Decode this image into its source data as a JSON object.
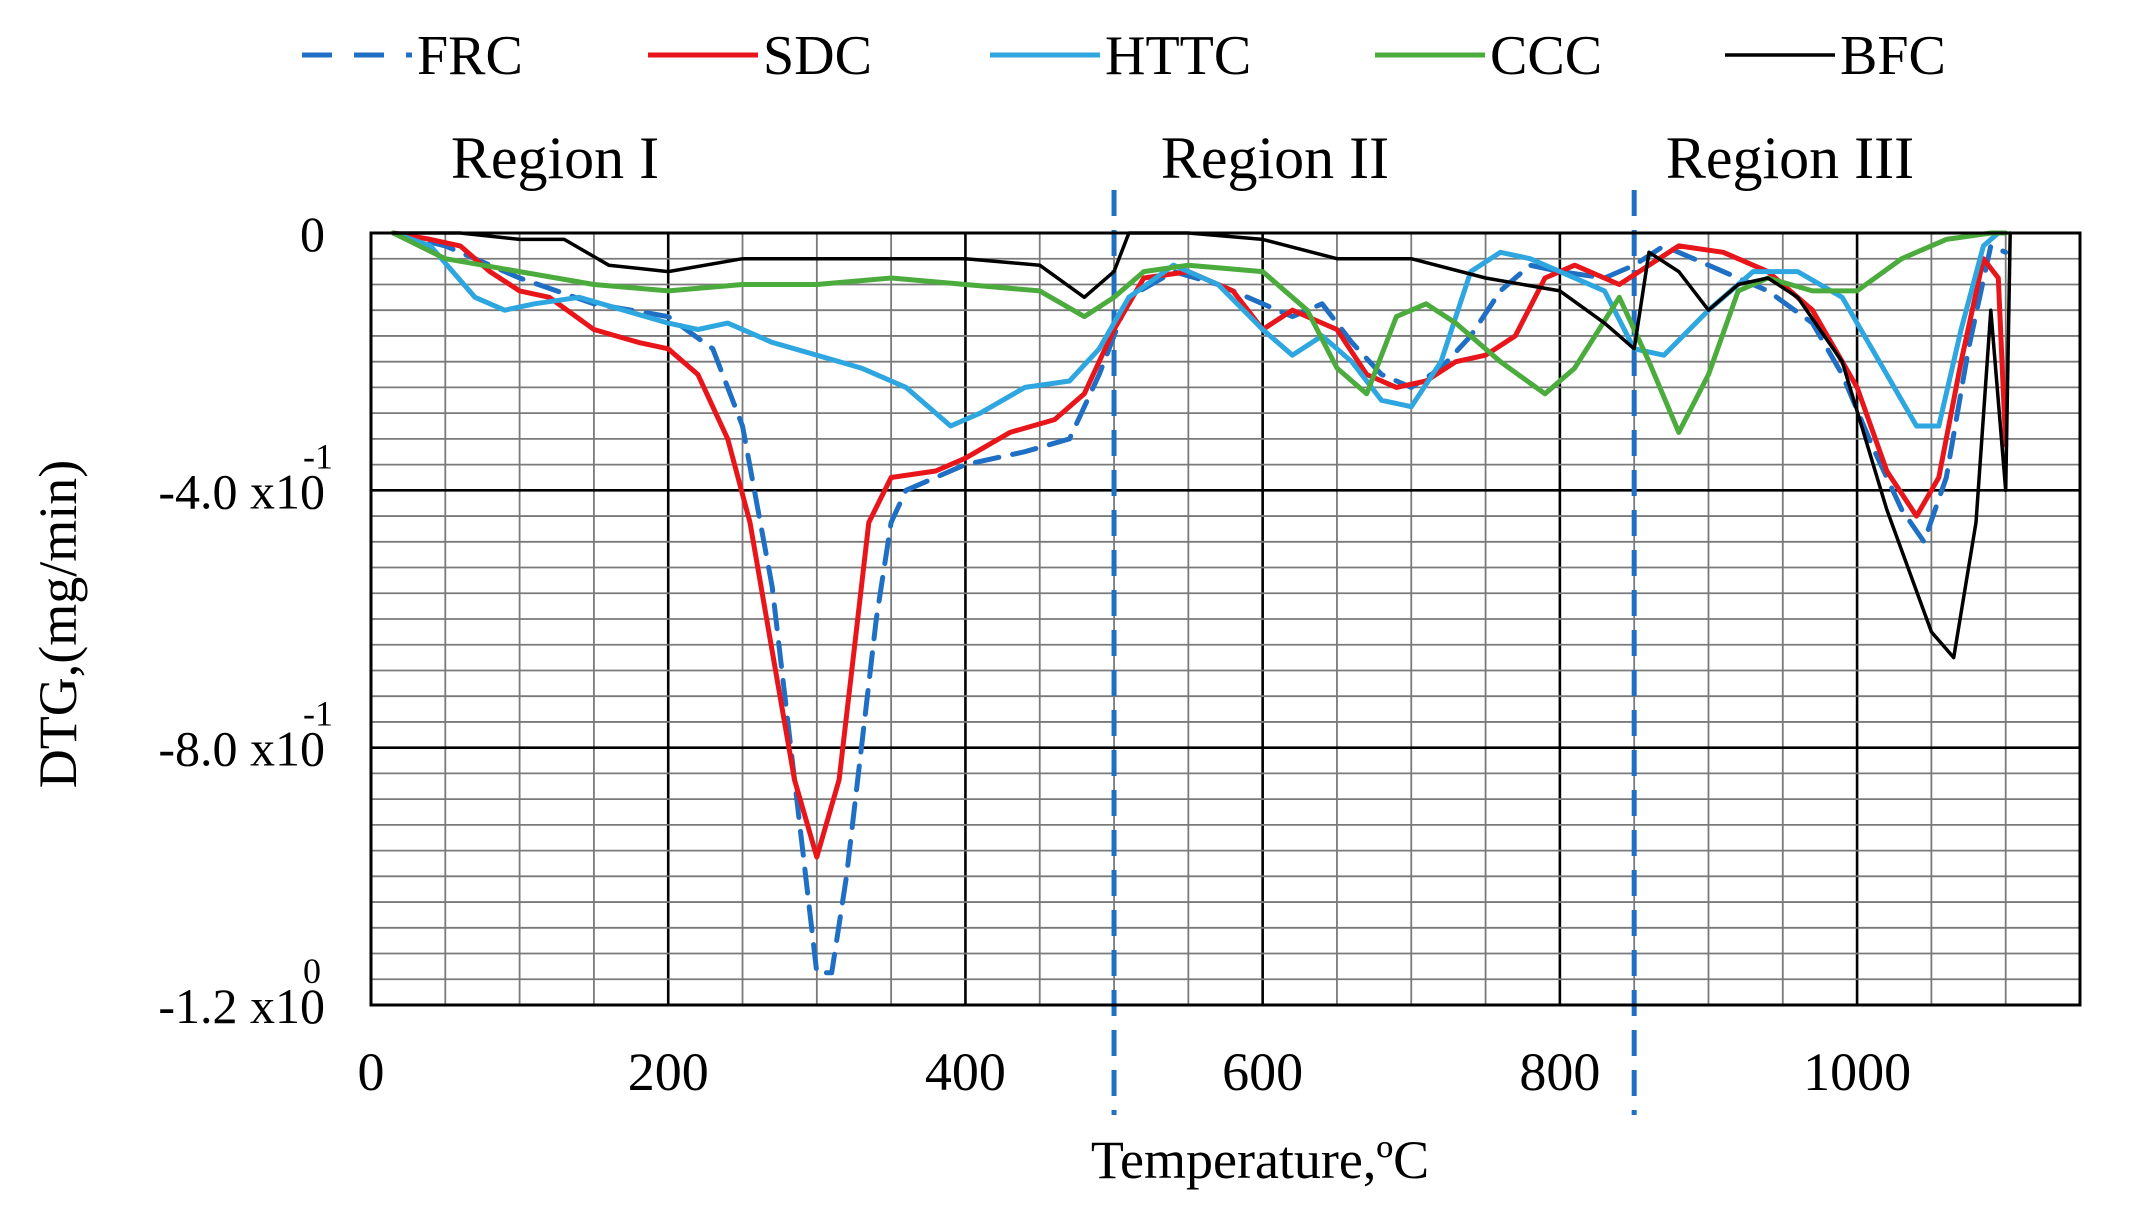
{
  "chart_data": {
    "type": "line",
    "xlabel": "Temperature,ºC",
    "ylabel": "DTG,(mg/min)",
    "xlim": [
      0,
      1150
    ],
    "ylim": [
      -1.2,
      0
    ],
    "x_major_step": 200,
    "x_minor_step": 50,
    "y_major_step": 0.4,
    "y_minor_step": 0.04,
    "x_ticks": [
      {
        "value": 0,
        "label": "0"
      },
      {
        "value": 200,
        "label": "200"
      },
      {
        "value": 400,
        "label": "400"
      },
      {
        "value": 600,
        "label": "600"
      },
      {
        "value": 800,
        "label": "800"
      },
      {
        "value": 1000,
        "label": "1000"
      }
    ],
    "y_ticks": [
      {
        "value": 0,
        "label": "0",
        "exp": ""
      },
      {
        "value": -0.4,
        "label": "-4.0 x10",
        "exp": "-1"
      },
      {
        "value": -0.8,
        "label": "-8.0 x10",
        "exp": "-1"
      },
      {
        "value": -1.2,
        "label": "-1.2 x10",
        "exp": "0"
      }
    ],
    "regions": [
      {
        "label": "Region I",
        "x_start": 0,
        "x_end": 500
      },
      {
        "label": "Region II",
        "x_start": 500,
        "x_end": 850
      },
      {
        "label": "Region III",
        "x_start": 850,
        "x_end": 1100
      }
    ],
    "region_boundaries": [
      500,
      850
    ],
    "series": [
      {
        "name": "FRC",
        "color": "#1f6fc5",
        "dashed": true,
        "points": [
          [
            15,
            0
          ],
          [
            50,
            -0.02
          ],
          [
            100,
            -0.07
          ],
          [
            150,
            -0.11
          ],
          [
            200,
            -0.13
          ],
          [
            230,
            -0.18
          ],
          [
            250,
            -0.3
          ],
          [
            270,
            -0.55
          ],
          [
            290,
            -0.95
          ],
          [
            300,
            -1.15
          ],
          [
            310,
            -1.15
          ],
          [
            320,
            -1.0
          ],
          [
            330,
            -0.8
          ],
          [
            340,
            -0.6
          ],
          [
            350,
            -0.45
          ],
          [
            360,
            -0.4
          ],
          [
            400,
            -0.36
          ],
          [
            440,
            -0.34
          ],
          [
            470,
            -0.32
          ],
          [
            490,
            -0.22
          ],
          [
            510,
            -0.1
          ],
          [
            540,
            -0.06
          ],
          [
            570,
            -0.08
          ],
          [
            600,
            -0.11
          ],
          [
            620,
            -0.13
          ],
          [
            640,
            -0.11
          ],
          [
            660,
            -0.17
          ],
          [
            680,
            -0.22
          ],
          [
            700,
            -0.24
          ],
          [
            720,
            -0.21
          ],
          [
            740,
            -0.16
          ],
          [
            760,
            -0.09
          ],
          [
            780,
            -0.05
          ],
          [
            800,
            -0.06
          ],
          [
            830,
            -0.07
          ],
          [
            850,
            -0.05
          ],
          [
            870,
            -0.02
          ],
          [
            900,
            -0.05
          ],
          [
            940,
            -0.09
          ],
          [
            970,
            -0.14
          ],
          [
            990,
            -0.22
          ],
          [
            1010,
            -0.33
          ],
          [
            1030,
            -0.43
          ],
          [
            1045,
            -0.48
          ],
          [
            1060,
            -0.38
          ],
          [
            1075,
            -0.18
          ],
          [
            1090,
            -0.02
          ],
          [
            1100,
            -0.03
          ]
        ]
      },
      {
        "name": "SDC",
        "color": "#e8161b",
        "dashed": false,
        "points": [
          [
            15,
            0
          ],
          [
            40,
            -0.01
          ],
          [
            60,
            -0.02
          ],
          [
            80,
            -0.06
          ],
          [
            100,
            -0.09
          ],
          [
            120,
            -0.1
          ],
          [
            150,
            -0.15
          ],
          [
            180,
            -0.17
          ],
          [
            200,
            -0.18
          ],
          [
            220,
            -0.22
          ],
          [
            240,
            -0.32
          ],
          [
            255,
            -0.45
          ],
          [
            270,
            -0.65
          ],
          [
            285,
            -0.85
          ],
          [
            300,
            -0.97
          ],
          [
            315,
            -0.85
          ],
          [
            325,
            -0.65
          ],
          [
            335,
            -0.45
          ],
          [
            350,
            -0.38
          ],
          [
            380,
            -0.37
          ],
          [
            400,
            -0.35
          ],
          [
            430,
            -0.31
          ],
          [
            460,
            -0.29
          ],
          [
            480,
            -0.25
          ],
          [
            500,
            -0.15
          ],
          [
            520,
            -0.07
          ],
          [
            550,
            -0.06
          ],
          [
            580,
            -0.09
          ],
          [
            600,
            -0.15
          ],
          [
            620,
            -0.12
          ],
          [
            650,
            -0.15
          ],
          [
            670,
            -0.22
          ],
          [
            690,
            -0.24
          ],
          [
            710,
            -0.23
          ],
          [
            730,
            -0.2
          ],
          [
            750,
            -0.19
          ],
          [
            770,
            -0.16
          ],
          [
            790,
            -0.07
          ],
          [
            810,
            -0.05
          ],
          [
            840,
            -0.08
          ],
          [
            860,
            -0.05
          ],
          [
            880,
            -0.02
          ],
          [
            910,
            -0.03
          ],
          [
            940,
            -0.06
          ],
          [
            970,
            -0.12
          ],
          [
            1000,
            -0.24
          ],
          [
            1020,
            -0.37
          ],
          [
            1040,
            -0.44
          ],
          [
            1055,
            -0.38
          ],
          [
            1070,
            -0.2
          ],
          [
            1085,
            -0.04
          ],
          [
            1095,
            -0.07
          ],
          [
            1100,
            -0.33
          ]
        ]
      },
      {
        "name": "HTTC",
        "color": "#2ea6df",
        "dashed": false,
        "points": [
          [
            15,
            0
          ],
          [
            40,
            -0.02
          ],
          [
            70,
            -0.1
          ],
          [
            90,
            -0.12
          ],
          [
            110,
            -0.11
          ],
          [
            140,
            -0.1
          ],
          [
            170,
            -0.12
          ],
          [
            200,
            -0.14
          ],
          [
            220,
            -0.15
          ],
          [
            240,
            -0.14
          ],
          [
            270,
            -0.17
          ],
          [
            300,
            -0.19
          ],
          [
            330,
            -0.21
          ],
          [
            360,
            -0.24
          ],
          [
            390,
            -0.3
          ],
          [
            410,
            -0.28
          ],
          [
            440,
            -0.24
          ],
          [
            470,
            -0.23
          ],
          [
            490,
            -0.18
          ],
          [
            510,
            -0.1
          ],
          [
            540,
            -0.05
          ],
          [
            570,
            -0.08
          ],
          [
            600,
            -0.15
          ],
          [
            620,
            -0.19
          ],
          [
            640,
            -0.16
          ],
          [
            660,
            -0.2
          ],
          [
            680,
            -0.26
          ],
          [
            700,
            -0.27
          ],
          [
            720,
            -0.2
          ],
          [
            740,
            -0.06
          ],
          [
            760,
            -0.03
          ],
          [
            780,
            -0.04
          ],
          [
            800,
            -0.06
          ],
          [
            830,
            -0.09
          ],
          [
            850,
            -0.18
          ],
          [
            870,
            -0.19
          ],
          [
            900,
            -0.12
          ],
          [
            930,
            -0.06
          ],
          [
            960,
            -0.06
          ],
          [
            990,
            -0.1
          ],
          [
            1020,
            -0.22
          ],
          [
            1040,
            -0.3
          ],
          [
            1055,
            -0.3
          ],
          [
            1070,
            -0.15
          ],
          [
            1085,
            -0.02
          ],
          [
            1095,
            0
          ]
        ]
      },
      {
        "name": "CCC",
        "color": "#4bab3d",
        "dashed": false,
        "points": [
          [
            15,
            0
          ],
          [
            50,
            -0.04
          ],
          [
            100,
            -0.06
          ],
          [
            150,
            -0.08
          ],
          [
            200,
            -0.09
          ],
          [
            250,
            -0.08
          ],
          [
            300,
            -0.08
          ],
          [
            350,
            -0.07
          ],
          [
            400,
            -0.08
          ],
          [
            450,
            -0.09
          ],
          [
            480,
            -0.13
          ],
          [
            500,
            -0.1
          ],
          [
            520,
            -0.06
          ],
          [
            550,
            -0.05
          ],
          [
            600,
            -0.06
          ],
          [
            630,
            -0.12
          ],
          [
            650,
            -0.21
          ],
          [
            670,
            -0.25
          ],
          [
            690,
            -0.13
          ],
          [
            710,
            -0.11
          ],
          [
            730,
            -0.14
          ],
          [
            760,
            -0.2
          ],
          [
            790,
            -0.25
          ],
          [
            810,
            -0.21
          ],
          [
            840,
            -0.1
          ],
          [
            860,
            -0.2
          ],
          [
            880,
            -0.31
          ],
          [
            900,
            -0.22
          ],
          [
            920,
            -0.09
          ],
          [
            940,
            -0.07
          ],
          [
            970,
            -0.09
          ],
          [
            1000,
            -0.09
          ],
          [
            1030,
            -0.04
          ],
          [
            1060,
            -0.01
          ],
          [
            1090,
            0
          ],
          [
            1100,
            0
          ]
        ]
      },
      {
        "name": "BFC",
        "color": "#000000",
        "dashed": false,
        "points": [
          [
            15,
            0
          ],
          [
            60,
            0
          ],
          [
            100,
            -0.01
          ],
          [
            130,
            -0.01
          ],
          [
            160,
            -0.05
          ],
          [
            200,
            -0.06
          ],
          [
            250,
            -0.04
          ],
          [
            300,
            -0.04
          ],
          [
            350,
            -0.04
          ],
          [
            400,
            -0.04
          ],
          [
            450,
            -0.05
          ],
          [
            480,
            -0.1
          ],
          [
            500,
            -0.06
          ],
          [
            510,
            0
          ],
          [
            550,
            0
          ],
          [
            600,
            -0.01
          ],
          [
            650,
            -0.04
          ],
          [
            700,
            -0.04
          ],
          [
            750,
            -0.07
          ],
          [
            800,
            -0.09
          ],
          [
            830,
            -0.14
          ],
          [
            850,
            -0.18
          ],
          [
            860,
            -0.03
          ],
          [
            880,
            -0.06
          ],
          [
            900,
            -0.12
          ],
          [
            920,
            -0.08
          ],
          [
            940,
            -0.07
          ],
          [
            960,
            -0.1
          ],
          [
            990,
            -0.2
          ],
          [
            1020,
            -0.43
          ],
          [
            1050,
            -0.62
          ],
          [
            1065,
            -0.66
          ],
          [
            1080,
            -0.45
          ],
          [
            1090,
            -0.12
          ],
          [
            1100,
            -0.4
          ],
          [
            1103,
            0
          ]
        ]
      }
    ]
  }
}
